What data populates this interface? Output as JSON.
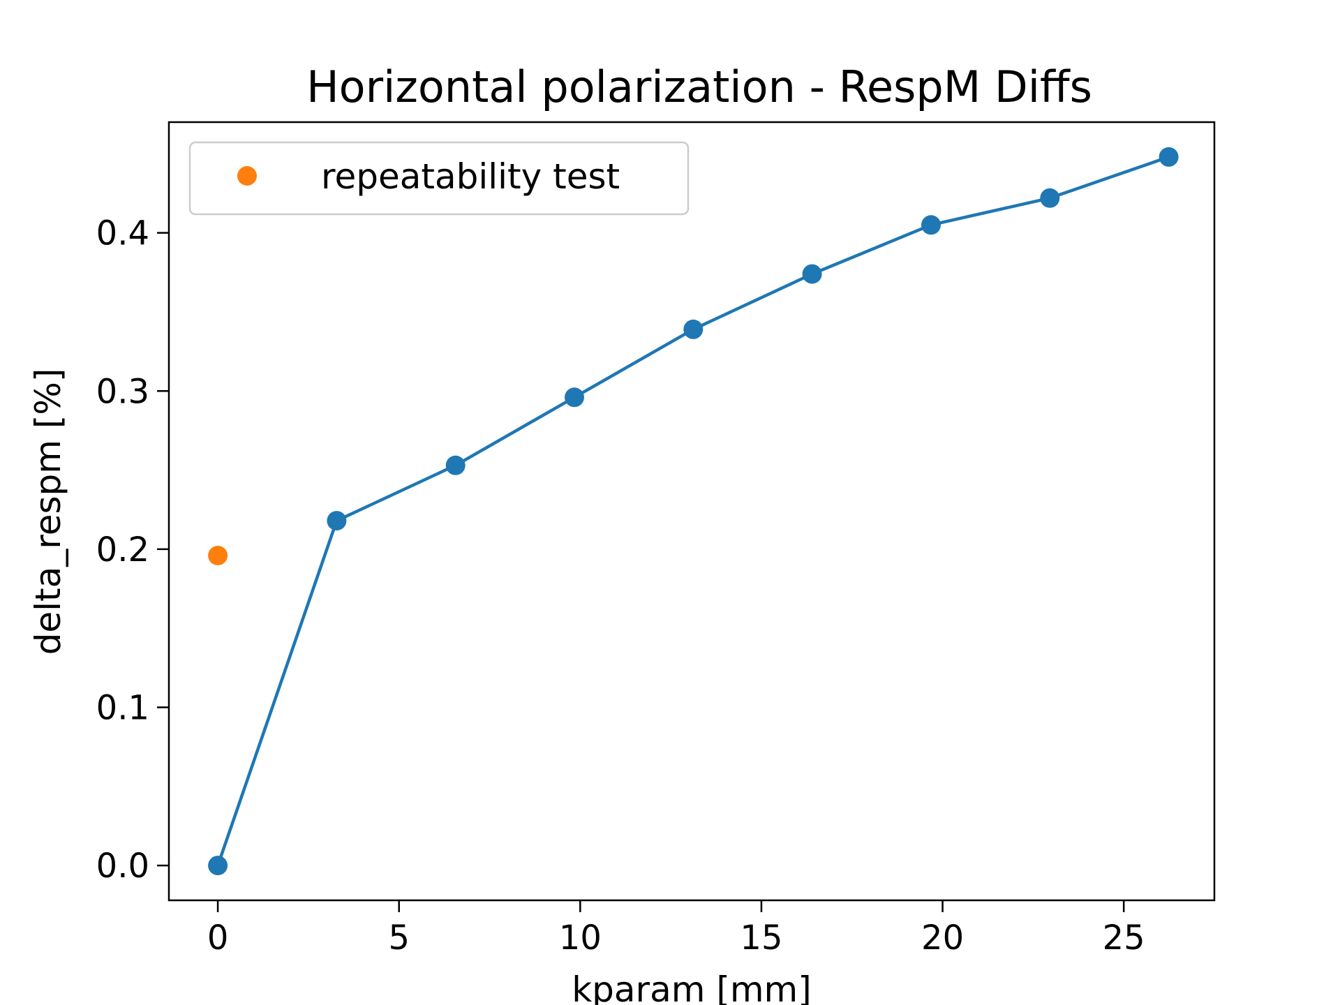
{
  "chart_data": {
    "type": "line",
    "title": "Horizontal polarization - RespM Diffs",
    "xlabel": "kparam [mm]",
    "ylabel": "delta_respm [%]",
    "xlim": [
      -1.35,
      27.5
    ],
    "ylim": [
      -0.022,
      0.47
    ],
    "xticks": [
      0,
      5,
      10,
      15,
      20,
      25
    ],
    "yticks": [
      0.0,
      0.1,
      0.2,
      0.3,
      0.4
    ],
    "xtick_labels": [
      "0",
      "5",
      "10",
      "15",
      "20",
      "25"
    ],
    "ytick_labels": [
      "0.0",
      "0.1",
      "0.2",
      "0.3",
      "0.4"
    ],
    "grid": false,
    "legend_position": "top-left",
    "series": [
      {
        "style": "line-markers",
        "color": "#1f77b4",
        "x": [
          0,
          3.28,
          6.56,
          9.84,
          13.12,
          16.4,
          19.68,
          22.96,
          26.24
        ],
        "y": [
          0.0,
          0.218,
          0.253,
          0.296,
          0.339,
          0.374,
          0.405,
          0.422,
          0.448
        ]
      },
      {
        "name": "repeatability test",
        "style": "markers",
        "color": "#ff7f0e",
        "x": [
          0
        ],
        "y": [
          0.196
        ]
      }
    ]
  }
}
